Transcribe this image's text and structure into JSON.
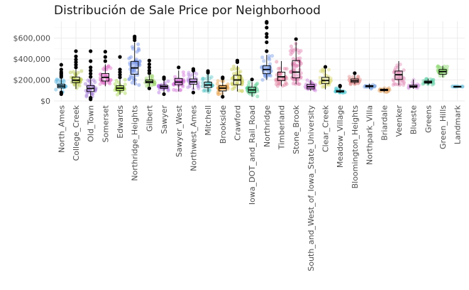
{
  "chart_data": {
    "type": "boxplot",
    "title": "Distribución de Sale Price por Neighborhood",
    "xlabel": "",
    "ylabel": "",
    "ylim": [
      0,
      760000
    ],
    "y_ticks": [
      0,
      200000,
      400000,
      600000
    ],
    "y_tick_labels": [
      "$0",
      "$200,000",
      "$400,000",
      "$600,000"
    ],
    "grid": true,
    "legend": "none",
    "categories": [
      {
        "name": "North_Ames",
        "color": "#5BB5E0",
        "min": 70000,
        "q1": 125000,
        "median": 142000,
        "q3": 160000,
        "max": 215000,
        "outliers": [
          230000,
          245000,
          260000,
          275000,
          300000,
          345000,
          80000,
          65000
        ]
      },
      {
        "name": "College_Creek",
        "color": "#B9C74A",
        "min": 115000,
        "q1": 175000,
        "median": 198000,
        "q3": 228000,
        "max": 300000,
        "outliers": [
          320000,
          345000,
          370000,
          395000,
          425000,
          475000
        ]
      },
      {
        "name": "Old_Town",
        "color": "#A47CD8",
        "min": 40000,
        "q1": 90000,
        "median": 119000,
        "q3": 145000,
        "max": 210000,
        "outliers": [
          230000,
          260000,
          290000,
          320000,
          380000,
          475000,
          30000,
          15000
        ]
      },
      {
        "name": "Somerset",
        "color": "#E06FC7",
        "min": 140000,
        "q1": 190000,
        "median": 225000,
        "q3": 262000,
        "max": 350000,
        "outliers": [
          380000,
          420000,
          470000
        ]
      },
      {
        "name": "Edwards",
        "color": "#A9D94D",
        "min": 60000,
        "q1": 100000,
        "median": 122000,
        "q3": 145000,
        "max": 205000,
        "outliers": [
          225000,
          250000,
          275000,
          300000,
          420000
        ]
      },
      {
        "name": "Northridge_Heights",
        "color": "#6F8FE6",
        "min": 150000,
        "q1": 255000,
        "median": 315000,
        "q3": 378000,
        "max": 560000,
        "outliers": [
          580000,
          600000,
          615000
        ]
      },
      {
        "name": "Gilbert",
        "color": "#9BD36A",
        "min": 140000,
        "q1": 172000,
        "median": 183000,
        "q3": 200000,
        "max": 245000,
        "outliers": [
          265000,
          290000,
          320000,
          350000,
          385000,
          120000
        ]
      },
      {
        "name": "Sawyer",
        "color": "#B26FE0",
        "min": 75000,
        "q1": 120000,
        "median": 136000,
        "q3": 150000,
        "max": 195000,
        "outliers": [
          210000,
          225000,
          65000
        ]
      },
      {
        "name": "Sawyer_West",
        "color": "#D36FD6",
        "min": 90000,
        "q1": 155000,
        "median": 180000,
        "q3": 215000,
        "max": 290000,
        "outliers": [
          320000
        ]
      },
      {
        "name": "Northwest_Ames",
        "color": "#B98AE0",
        "min": 110000,
        "q1": 160000,
        "median": 182000,
        "q3": 210000,
        "max": 275000,
        "outliers": [
          290000,
          305000,
          80000
        ]
      },
      {
        "name": "Mitchell",
        "color": "#5EC8C8",
        "min": 85000,
        "q1": 128000,
        "median": 152000,
        "q3": 180000,
        "max": 255000,
        "outliers": [
          270000,
          285000
        ]
      },
      {
        "name": "Brookside",
        "color": "#E8A24A",
        "min": 50000,
        "q1": 95000,
        "median": 122000,
        "q3": 145000,
        "max": 195000,
        "outliers": [
          215000,
          225000,
          40000
        ]
      },
      {
        "name": "Crawford",
        "color": "#C9CF55",
        "min": 90000,
        "q1": 155000,
        "median": 200000,
        "q3": 245000,
        "max": 335000,
        "outliers": [
          370000,
          385000
        ]
      },
      {
        "name": "Iowa_DOT_and_Rail_Road",
        "color": "#55CF8E",
        "min": 40000,
        "q1": 80000,
        "median": 105000,
        "q3": 130000,
        "max": 180000,
        "outliers": [
          205000
        ]
      },
      {
        "name": "Northridge",
        "color": "#7A9EE8",
        "min": 200000,
        "q1": 260000,
        "median": 300000,
        "q3": 335000,
        "max": 440000,
        "outliers": [
          475000,
          560000,
          610000,
          640000,
          700000,
          745000,
          755000
        ]
      },
      {
        "name": "Timberland",
        "color": "#E07F9E",
        "min": 140000,
        "q1": 195000,
        "median": 230000,
        "q3": 275000,
        "max": 380000,
        "outliers": []
      },
      {
        "name": "Stone_Brook",
        "color": "#E07FB0",
        "min": 160000,
        "q1": 220000,
        "median": 275000,
        "q3": 385000,
        "max": 560000,
        "outliers": [
          590000
        ]
      },
      {
        "name": "South_and_West_of_Iowa_State_University",
        "color": "#C97FD6",
        "min": 95000,
        "q1": 115000,
        "median": 136000,
        "q3": 158000,
        "max": 200000,
        "outliers": []
      },
      {
        "name": "Clear_Creek",
        "color": "#D6D66F",
        "min": 110000,
        "q1": 165000,
        "median": 195000,
        "q3": 225000,
        "max": 305000,
        "outliers": [
          325000
        ]
      },
      {
        "name": "Meadow_Village",
        "color": "#4FC7D1",
        "min": 75000,
        "q1": 85000,
        "median": 90000,
        "q3": 100000,
        "max": 125000,
        "outliers": [
          140000,
          145000
        ]
      },
      {
        "name": "Bloomington_Heights",
        "color": "#E38F8F",
        "min": 160000,
        "q1": 178000,
        "median": 192000,
        "q3": 210000,
        "max": 250000,
        "outliers": [
          265000
        ]
      },
      {
        "name": "Northpark_Villa",
        "color": "#7FA6E0",
        "min": 115000,
        "q1": 135000,
        "median": 141000,
        "q3": 147000,
        "max": 165000,
        "outliers": []
      },
      {
        "name": "Briardale",
        "color": "#E3A86F",
        "min": 85000,
        "q1": 98000,
        "median": 105000,
        "q3": 112000,
        "max": 125000,
        "outliers": []
      },
      {
        "name": "Veenker",
        "color": "#E38FB8",
        "min": 150000,
        "q1": 205000,
        "median": 250000,
        "q3": 285000,
        "max": 380000,
        "outliers": []
      },
      {
        "name": "Blueste",
        "color": "#D6A0E0",
        "min": 115000,
        "q1": 130000,
        "median": 138000,
        "q3": 150000,
        "max": 205000,
        "outliers": []
      },
      {
        "name": "Greens",
        "color": "#66D1A8",
        "min": 155000,
        "q1": 170000,
        "median": 180000,
        "q3": 190000,
        "max": 212000,
        "outliers": []
      },
      {
        "name": "Green_Hills",
        "color": "#8CD66F",
        "min": 225000,
        "q1": 255000,
        "median": 280000,
        "q3": 300000,
        "max": 335000,
        "outliers": []
      },
      {
        "name": "Landmark",
        "color": "#7FC7E0",
        "min": 136000,
        "q1": 137000,
        "median": 137500,
        "q3": 138000,
        "max": 139000,
        "outliers": []
      }
    ]
  }
}
